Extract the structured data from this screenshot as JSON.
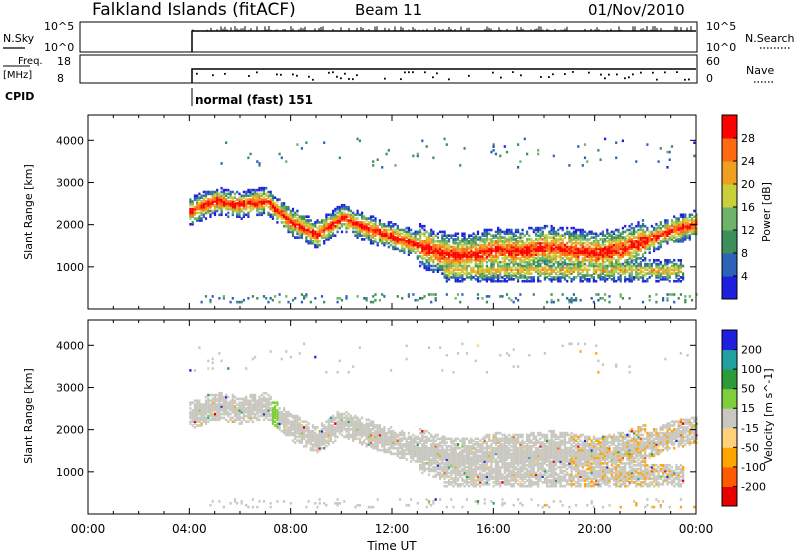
{
  "header": {
    "station": "Falkland Islands (fitACF)",
    "beam": "Beam 11",
    "date": "01/Nov/2010"
  },
  "top_panels": {
    "nsky_label": "N.Sky",
    "nsky_ticks": [
      "10^5",
      "10^0"
    ],
    "nsearch_label": "N.Search",
    "nsearch_ticks": [
      "10^5",
      "10^0"
    ],
    "freq_label_1": "Freq.",
    "freq_label_2": "[MHz]",
    "freq_ticks": [
      "18",
      "8"
    ],
    "nave_label": "Nave",
    "nave_ticks": [
      "60",
      "0"
    ],
    "cpid_label": "CPID",
    "cpid_text": "normal (fast) 151"
  },
  "colors": {
    "power_scale": [
      "#1f1fe0",
      "#2c63b8",
      "#3d8f5a",
      "#6fb36a",
      "#c7cf3a",
      "#f0a020",
      "#ff6a10",
      "#ff0000"
    ],
    "velocity_scale": [
      "#e60000",
      "#ff5a00",
      "#ffa500",
      "#ffd27a",
      "#c8c8c0",
      "#7fcf3a",
      "#2c9a3a",
      "#20a0a0",
      "#1f1fe0"
    ],
    "ground_scatter": "#c8c8c0"
  },
  "chart_data": [
    {
      "type": "heatmap",
      "title": "",
      "xlabel": "Time UT",
      "ylabel": "Slant Range [km]",
      "x_ticks": [
        "00:00",
        "04:00",
        "08:00",
        "12:00",
        "16:00",
        "20:00",
        "00:00"
      ],
      "xlim_hours": [
        0,
        24
      ],
      "y_ticks": [
        1000,
        2000,
        3000,
        4000
      ],
      "ylim_km": [
        0,
        4600
      ],
      "colorbar_label": "Power [dB]",
      "colorbar_ticks": [
        4,
        8,
        12,
        16,
        20,
        24,
        28
      ],
      "data_start_hour": 4,
      "band_center_km": [
        {
          "hour": 4.0,
          "km": 2300
        },
        {
          "hour": 5.0,
          "km": 2550
        },
        {
          "hour": 6.0,
          "km": 2450
        },
        {
          "hour": 7.0,
          "km": 2550
        },
        {
          "hour": 8.0,
          "km": 2050
        },
        {
          "hour": 9.0,
          "km": 1750
        },
        {
          "hour": 10.0,
          "km": 2150
        },
        {
          "hour": 11.0,
          "km": 1900
        },
        {
          "hour": 12.0,
          "km": 1700
        },
        {
          "hour": 13.0,
          "km": 1500
        },
        {
          "hour": 14.0,
          "km": 1300
        },
        {
          "hour": 15.0,
          "km": 1250
        },
        {
          "hour": 16.0,
          "km": 1400
        },
        {
          "hour": 17.0,
          "km": 1350
        },
        {
          "hour": 18.0,
          "km": 1450
        },
        {
          "hour": 19.0,
          "km": 1400
        },
        {
          "hour": 20.0,
          "km": 1300
        },
        {
          "hour": 21.0,
          "km": 1400
        },
        {
          "hour": 22.0,
          "km": 1600
        },
        {
          "hour": 23.0,
          "km": 1850
        },
        {
          "hour": 24.0,
          "km": 2000
        }
      ]
    },
    {
      "type": "heatmap",
      "title": "",
      "xlabel": "Time UT",
      "ylabel": "Slant Range [km]",
      "x_ticks": [
        "00:00",
        "04:00",
        "08:00",
        "12:00",
        "16:00",
        "20:00",
        "00:00"
      ],
      "xlim_hours": [
        0,
        24
      ],
      "y_ticks": [
        1000,
        2000,
        3000,
        4000
      ],
      "ylim_km": [
        0,
        4600
      ],
      "colorbar_label": "Velocity [m s^-1]",
      "colorbar_ticks": [
        200,
        100,
        50,
        15,
        -15,
        -50,
        -100,
        -200
      ],
      "data_start_hour": 4
    }
  ]
}
